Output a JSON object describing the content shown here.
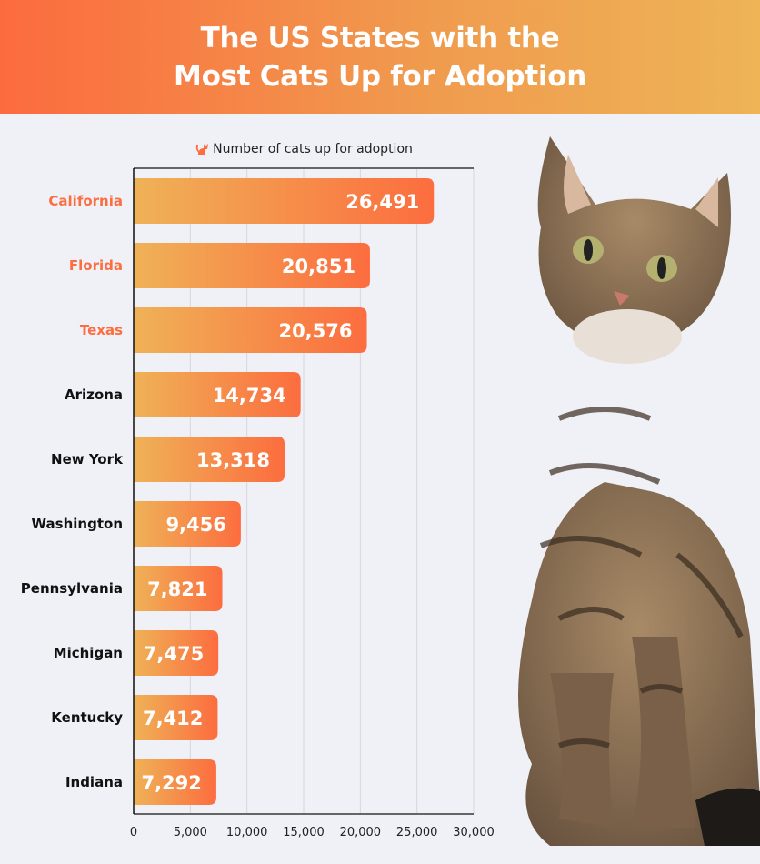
{
  "header": {
    "title_line1": "The US States with the",
    "title_line2": "Most Cats Up for Adoption"
  },
  "chart_data": {
    "type": "bar",
    "orientation": "horizontal",
    "legend": "Number of cats up for adoption",
    "legend_icon": "cat-icon",
    "categories": [
      "California",
      "Florida",
      "Texas",
      "Arizona",
      "New York",
      "Washington",
      "Pennsylvania",
      "Michigan",
      "Kentucky",
      "Indiana"
    ],
    "values": [
      26491,
      20851,
      20576,
      14734,
      13318,
      9456,
      7821,
      7475,
      7412,
      7292
    ],
    "value_labels": [
      "26,491",
      "20,851",
      "20,576",
      "14,734",
      "13,318",
      "9,456",
      "7,821",
      "7,475",
      "7,412",
      "7,292"
    ],
    "highlighted": [
      "California",
      "Florida",
      "Texas"
    ],
    "xlim": [
      0,
      30000
    ],
    "xticks": [
      0,
      5000,
      10000,
      15000,
      20000,
      25000,
      30000
    ],
    "xtick_labels": [
      "0",
      "5,000",
      "10,000",
      "15,000",
      "20,000",
      "25,000",
      "30,000"
    ],
    "grid": true,
    "colors": {
      "bar_start": "#efb257",
      "bar_end": "#fc6d3f",
      "highlight_label": "#fc6d3f",
      "label": "#111111",
      "grid": "#d6d6de"
    }
  }
}
